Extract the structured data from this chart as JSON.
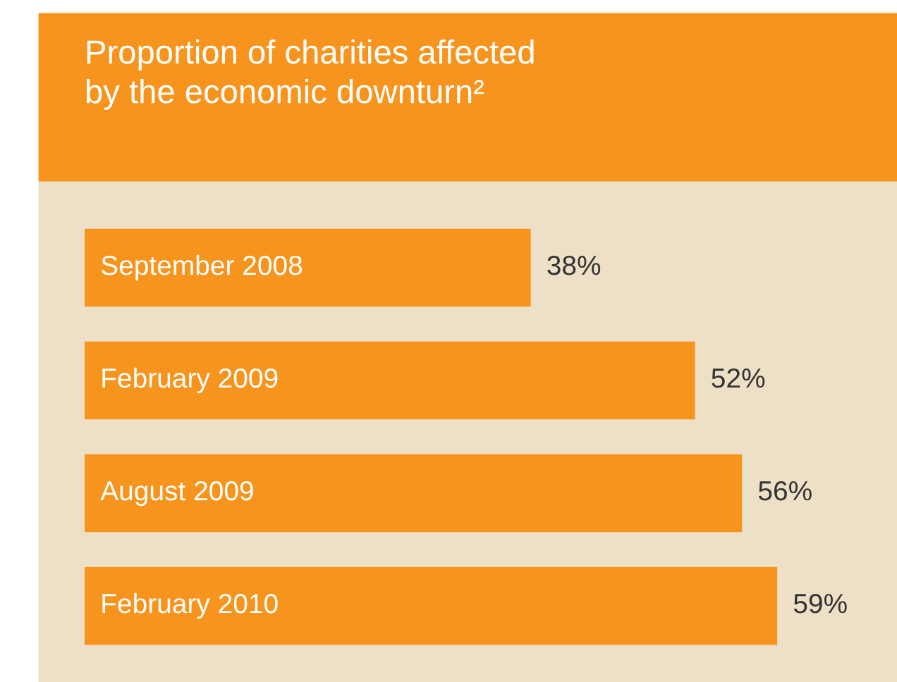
{
  "chart_data": {
    "type": "bar",
    "orientation": "horizontal",
    "title": "Proportion of charities affected\nby the economic downturn²",
    "categories": [
      "September 2008",
      "February 2009",
      "August 2009",
      "February 2010"
    ],
    "values": [
      38,
      52,
      56,
      59
    ],
    "value_labels": [
      "38%",
      "52%",
      "56%",
      "59%"
    ],
    "color": "#f7941d",
    "legend": false
  }
}
